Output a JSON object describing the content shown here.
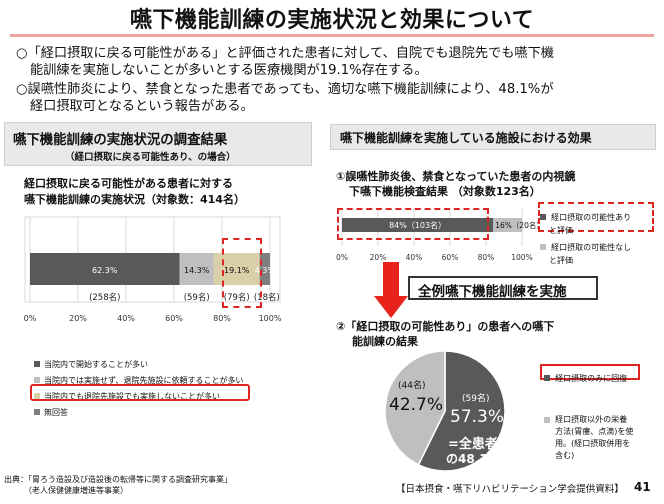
{
  "header": {
    "title": "嚥下機能訓練の実施状況と効果について",
    "bullet1_line1": "○「経口摂取に戻る可能性がある」と評価された患者に対して、自院でも退院先でも嚥下機",
    "bullet1_line2": "能訓練を実施しないことが多いとする医療機関が19.1%存在する。",
    "bullet2_line1": "○誤嚥性肺炎により、禁食となった患者であっても、適切な嚥下機能訓練により、48.1%が",
    "bullet2_line2": "経口摂取可となるという報告がある。"
  },
  "left": {
    "head_main": "嚥下機能訓練の実施状況の調査結果",
    "head_sub": "（経口摂取に戻る可能性あり、の場合）",
    "chart_title1": "経口摂取に戻る可能性がある患者に対する",
    "chart_title2": "嚥下機能訓練の実施状況（対象数：414名）",
    "legend": [
      {
        "label": "当院内で開始することが多い",
        "color": "#595959"
      },
      {
        "label": "当院内では実施せず、退院先施設に依頼することが多い",
        "color": "#bfbfbf"
      },
      {
        "label": "当院内でも退院先施設でも実施しないことが多い",
        "color": "#d9cfa8"
      },
      {
        "label": "無回答",
        "color": "#7f7f7f"
      }
    ],
    "source1": "出典：「胃ろう造設及び造設後の転帰等に関する調査研究事業」",
    "source2": "（老人保健健康増進等事業）"
  },
  "right": {
    "head": "嚥下機能訓練を実施している施設における効果",
    "sec1_line1": "①誤嚥性肺炎後、禁食となっていた患者の内視鏡",
    "sec1_line2": "下嚥下機能検査結果 （対象数123名）",
    "legend1": [
      {
        "label": "経口摂取の可能性あり",
        "color": "#595959"
      },
      {
        "label": "と評価",
        "color": ""
      },
      {
        "label": "経口摂取の可能性なし",
        "color": "#bfbfbf"
      },
      {
        "label": "と評価",
        "color": ""
      }
    ],
    "arrow_label": "全例嚥下機能訓練を実施",
    "sec2_line1": "②「経口摂取の可能性あり」の患者への嚥下",
    "sec2_line2": "能訓練の結果",
    "legend2_box": "経口摂取のみに回復",
    "legend2_lines": [
      "経口摂取以外の栄養",
      "方法(胃瘻、点滴)を使",
      "用。(経口摂取併用を",
      "含む)"
    ],
    "legend2_color": "#bfbfbf",
    "source": "【日本摂食・嚥下リハビリテーション学会提供資料】"
  },
  "page_number": "41",
  "chart_data": [
    {
      "type": "bar",
      "orientation": "horizontal-stacked",
      "title": "経口摂取に戻る可能性がある患者に対する嚥下機能訓練の実施状況（対象数：414名）",
      "segments": [
        {
          "name": "当院内で開始することが多い",
          "value": 62.3,
          "count": "(258名)",
          "label": "62.3%",
          "color": "#595959",
          "text_color": "#ffffff"
        },
        {
          "name": "当院内では実施せず、退院先施設に依頼することが多い",
          "value": 14.3,
          "count": "(59名)",
          "label": "14.3%",
          "color": "#bfbfbf",
          "text_color": "#111111"
        },
        {
          "name": "当院内でも退院先施設でも実施しないことが多い",
          "value": 19.1,
          "count": "(79名)",
          "label": "19.1%",
          "color": "#d9cfa8",
          "text_color": "#111111"
        },
        {
          "name": "無回答",
          "value": 4.3,
          "count": "(18名)",
          "label": "4.3%",
          "color": "#7f7f7f",
          "text_color": "#ffffff"
        }
      ],
      "ticks": [
        "0%",
        "20%",
        "40%",
        "60%",
        "80%",
        "100%"
      ],
      "xlim": [
        0,
        100
      ]
    },
    {
      "type": "bar",
      "orientation": "horizontal-stacked",
      "title": "①誤嚥性肺炎後、禁食となっていた患者の内視鏡下嚥下機能検査結果 （対象数123名）",
      "segments": [
        {
          "name": "経口摂取の可能性ありと評価",
          "value": 84,
          "label": "84%（103名）",
          "color": "#595959",
          "text_color": "#ffffff"
        },
        {
          "name": "経口摂取の可能性なしと評価",
          "value": 16,
          "label": "16%（20名）",
          "color": "#bfbfbf",
          "text_color": "#111111"
        }
      ],
      "ticks": [
        "0%",
        "20%",
        "40%",
        "60%",
        "80%",
        "100%"
      ],
      "xlim": [
        0,
        100
      ]
    },
    {
      "type": "pie",
      "title": "②「経口摂取の可能性あり」の患者への嚥下能訓練の結果",
      "slices": [
        {
          "name": "経口摂取のみに回復",
          "value": 57.3,
          "count": "(59名)",
          "label": "57.3%",
          "color": "#595959"
        },
        {
          "name": "経口摂取以外の栄養方法(胃瘻、点滴)を使用。(経口摂取併用を含む)",
          "value": 42.7,
          "count": "(44名)",
          "label": "42.7%",
          "color": "#bfbfbf"
        }
      ],
      "annotation_line1": "=全患者",
      "annotation_line2": "の48.1%"
    }
  ]
}
